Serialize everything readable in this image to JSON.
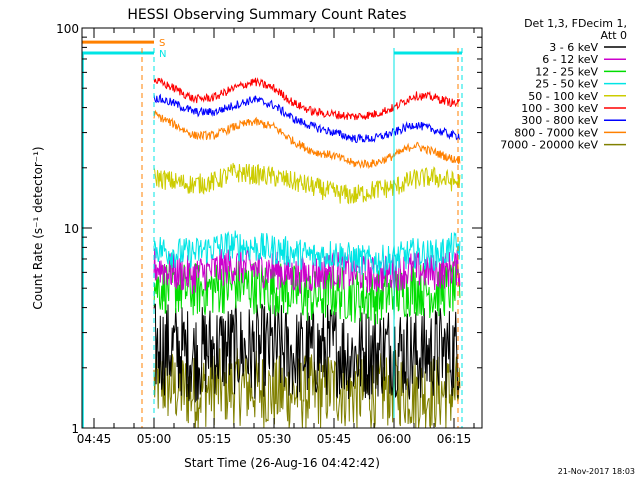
{
  "chart_data": {
    "type": "line",
    "title": "HESSI Observing Summary Count Rates",
    "xlabel": "Start Time (26-Aug-16 04:42:42)",
    "ylabel": "Count Rate (s⁻¹ detector⁻¹)",
    "y_scale": "log",
    "ylim": [
      1,
      100
    ],
    "xlim": [
      "04:42",
      "06:22"
    ],
    "x_tick_labels": [
      "04:45",
      "05:00",
      "05:15",
      "05:30",
      "05:45",
      "06:00",
      "06:15"
    ],
    "y_tick_labels": [
      "1",
      "10",
      "100"
    ],
    "legend_header": [
      "Det 1,3, FDecim 1,",
      "Att 0"
    ],
    "legend_position": "right",
    "timestamp": "21-Nov-2017 18:03",
    "x": [
      "05:00",
      "05:05",
      "05:10",
      "05:15",
      "05:20",
      "05:25",
      "05:30",
      "05:35",
      "05:40",
      "05:45",
      "05:50",
      "05:55",
      "06:00",
      "06:05",
      "06:10",
      "06:15"
    ],
    "series": [
      {
        "name": "3 - 6 keV",
        "color": "#000000",
        "values": [
          2.5,
          2.5,
          2.3,
          2.5,
          2.5,
          2.4,
          2.5,
          2.3,
          2.4,
          2.5,
          2.3,
          2.4,
          2.5,
          2.3,
          2.4,
          2.4
        ]
      },
      {
        "name": "6 - 12 keV",
        "color": "#cc00cc",
        "values": [
          6.5,
          6.0,
          5.8,
          6.2,
          6.5,
          6.3,
          6.2,
          5.8,
          5.9,
          6.2,
          6.0,
          5.8,
          6.0,
          6.2,
          6.0,
          6.3
        ]
      },
      {
        "name": "12 - 25 keV",
        "color": "#00dd00",
        "values": [
          5.2,
          5.0,
          4.9,
          5.0,
          5.2,
          5.1,
          5.0,
          4.8,
          4.5,
          4.8,
          4.6,
          4.5,
          4.7,
          5.0,
          4.8,
          5.0
        ]
      },
      {
        "name": "25 - 50 keV",
        "color": "#00e5e5",
        "values": [
          8.0,
          7.5,
          7.5,
          8.0,
          8.2,
          8.0,
          7.8,
          7.5,
          7.2,
          7.5,
          7.0,
          6.8,
          7.0,
          7.5,
          7.3,
          8.0
        ]
      },
      {
        "name": "50 - 100 keV",
        "color": "#cccc00",
        "values": [
          18,
          17,
          16.5,
          17,
          19,
          18.5,
          18,
          17,
          16,
          15,
          14.5,
          15.5,
          16,
          17.5,
          18,
          17
        ]
      },
      {
        "name": "100 - 300 keV",
        "color": "#ff0000",
        "values": [
          55,
          50,
          44,
          45,
          50,
          54,
          50,
          42,
          38,
          37,
          36,
          37,
          40,
          46,
          45,
          42
        ]
      },
      {
        "name": "300 - 800 keV",
        "color": "#0000ff",
        "values": [
          45,
          42,
          38,
          38,
          41,
          44,
          41,
          35,
          32,
          30,
          28,
          28,
          30,
          33,
          31,
          29
        ]
      },
      {
        "name": "800 - 7000 keV",
        "color": "#ff8000",
        "values": [
          37,
          33,
          29,
          29,
          32,
          34,
          32,
          27,
          24,
          23,
          21,
          21,
          23,
          26,
          24,
          22
        ]
      },
      {
        "name": "7000 - 20000 keV",
        "color": "#808000",
        "values": [
          1.7,
          1.6,
          1.5,
          1.6,
          1.6,
          1.6,
          1.5,
          1.5,
          1.5,
          1.6,
          1.5,
          1.5,
          1.6,
          1.5,
          1.5,
          1.5
        ]
      }
    ],
    "flags": [
      {
        "label": "S",
        "color": "#ff8000",
        "value": 85,
        "segments": [
          [
            "04:42",
            "05:00"
          ]
        ]
      },
      {
        "label": "N",
        "color": "#00e5e5",
        "value": 75,
        "segments": [
          [
            "04:42",
            "05:00"
          ],
          [
            "06:00",
            "06:17"
          ]
        ]
      }
    ],
    "markers": [
      {
        "color": "#ff8000",
        "style": "dashed",
        "x": "04:57"
      },
      {
        "color": "#00e5e5",
        "style": "dashed",
        "x": "05:00"
      },
      {
        "color": "#00e5e5",
        "style": "solid",
        "x": "06:00"
      },
      {
        "color": "#ff8000",
        "style": "dashed",
        "x": "06:16"
      },
      {
        "color": "#00e5e5",
        "style": "dashed",
        "x": "06:17"
      }
    ]
  }
}
